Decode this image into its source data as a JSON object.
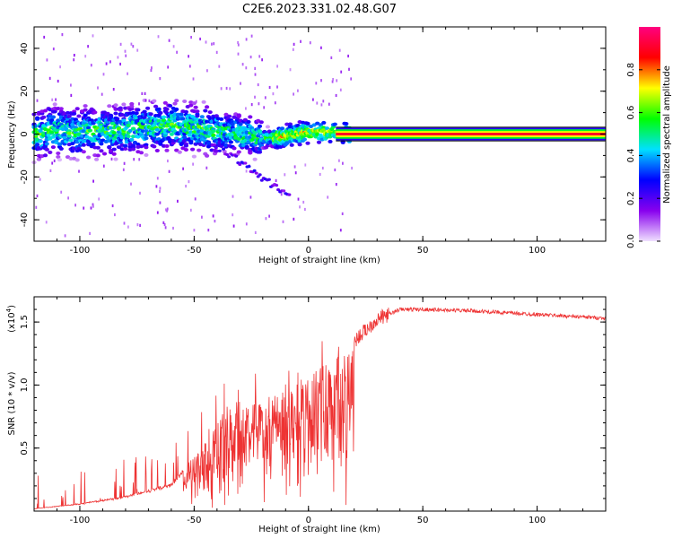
{
  "title": "C2E6.2023.331.02.48.G07",
  "chart_data": [
    {
      "type": "heatmap",
      "xlabel": "Height of straight line (km)",
      "ylabel": "Frequency (Hz)",
      "xlim": [
        -120,
        130
      ],
      "ylim": [
        -50,
        50
      ],
      "x_ticks": [
        "-100",
        "-50",
        "0",
        "50",
        "100"
      ],
      "y_ticks": [
        "-40",
        "-20",
        "0",
        "20",
        "40"
      ],
      "colorbar": {
        "label": "Normalized spectral amplitude",
        "range": [
          0,
          1
        ],
        "ticks": [
          "0.0",
          "0.2",
          "0.4",
          "0.6",
          "0.8"
        ],
        "colors": [
          "#f0e0ff",
          "#8800ee",
          "#0000ff",
          "#00e0ff",
          "#00ff00",
          "#ffff00",
          "#ff0000",
          "#ff0080"
        ]
      },
      "ridge": [
        {
          "x": -115,
          "y": 2
        },
        {
          "x": -100,
          "y": 1
        },
        {
          "x": -80,
          "y": 2
        },
        {
          "x": -60,
          "y": 4
        },
        {
          "x": -45,
          "y": 2
        },
        {
          "x": -30,
          "y": 0
        },
        {
          "x": -20,
          "y": -2
        },
        {
          "x": -10,
          "y": -1
        },
        {
          "x": 0,
          "y": 1
        },
        {
          "x": 10,
          "y": 1
        },
        {
          "x": 20,
          "y": 0
        },
        {
          "x": 50,
          "y": 0
        },
        {
          "x": 100,
          "y": 0
        },
        {
          "x": 130,
          "y": 0
        }
      ],
      "steady_tone": {
        "x_start": 12,
        "x_end": 130,
        "frequency": 0,
        "amplitude": 0.9
      }
    },
    {
      "type": "line",
      "xlabel": "Height of straight line (km)",
      "ylabel": "SNR (10 * v/v)",
      "scale_label": "(x10",
      "scale_exp": "4",
      "xlim": [
        -120,
        130
      ],
      "ylim": [
        0,
        1.7
      ],
      "x_ticks": [
        "-100",
        "-50",
        "0",
        "50",
        "100"
      ],
      "y_ticks": [
        "0.5",
        "1.0",
        "1.5"
      ],
      "color": "#ee3333",
      "envelope": [
        {
          "x": -120,
          "y": 0.02
        },
        {
          "x": -100,
          "y": 0.06
        },
        {
          "x": -80,
          "y": 0.12
        },
        {
          "x": -60,
          "y": 0.22
        },
        {
          "x": -50,
          "y": 0.45
        },
        {
          "x": -40,
          "y": 0.7
        },
        {
          "x": -30,
          "y": 0.9
        },
        {
          "x": -20,
          "y": 0.9
        },
        {
          "x": -10,
          "y": 0.95
        },
        {
          "x": 0,
          "y": 1.1
        },
        {
          "x": 10,
          "y": 1.2
        },
        {
          "x": 20,
          "y": 1.35
        },
        {
          "x": 30,
          "y": 1.52
        },
        {
          "x": 40,
          "y": 1.6
        },
        {
          "x": 50,
          "y": 1.6
        },
        {
          "x": 70,
          "y": 1.59
        },
        {
          "x": 100,
          "y": 1.56
        },
        {
          "x": 130,
          "y": 1.53
        }
      ]
    }
  ]
}
